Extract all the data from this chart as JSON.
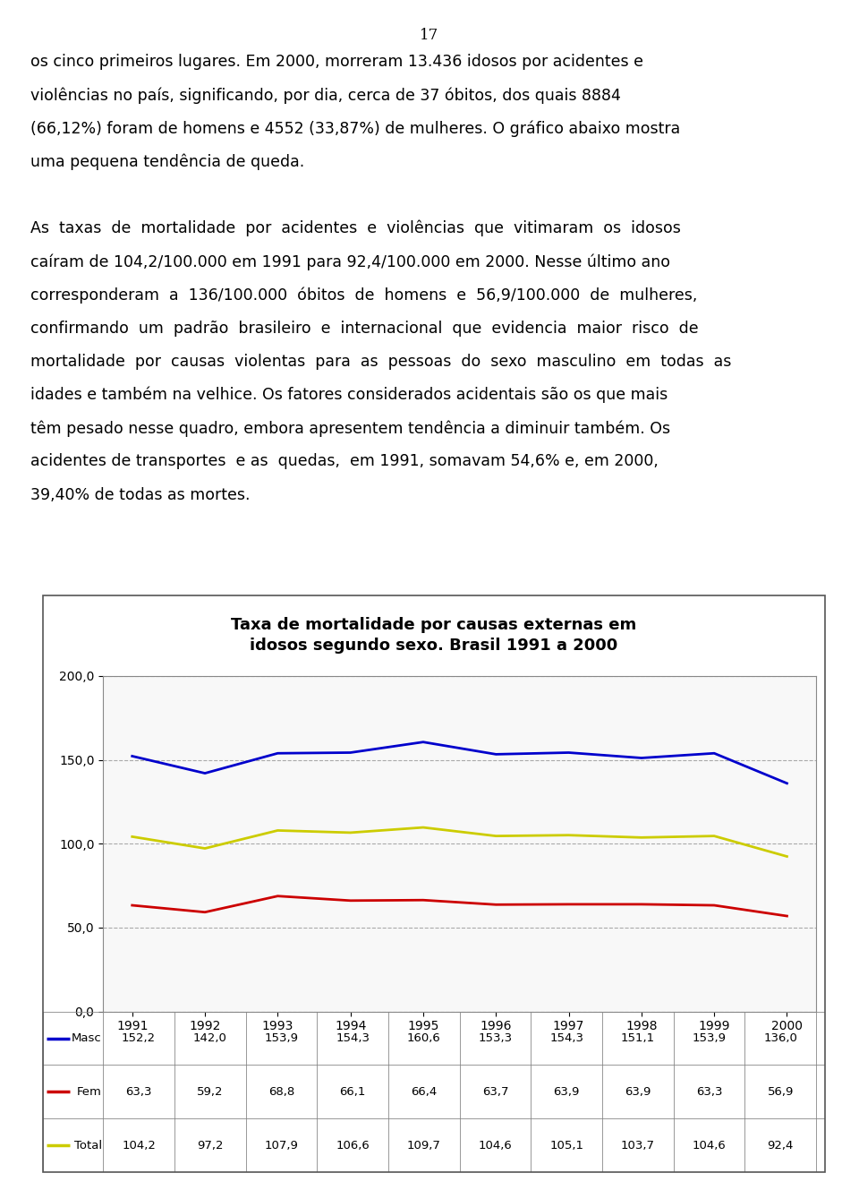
{
  "title_line1": "Taxa de mortalidade por causas externas em",
  "title_line2": "idosos segundo sexo. Brasil 1991 a 2000",
  "years": [
    1991,
    1992,
    1993,
    1994,
    1995,
    1996,
    1997,
    1998,
    1999,
    2000
  ],
  "masc": [
    152.2,
    142.0,
    153.9,
    154.3,
    160.6,
    153.3,
    154.3,
    151.1,
    153.9,
    136.0
  ],
  "fem": [
    63.3,
    59.2,
    68.8,
    66.1,
    66.4,
    63.7,
    63.9,
    63.9,
    63.3,
    56.9
  ],
  "total": [
    104.2,
    97.2,
    107.9,
    106.6,
    109.7,
    104.6,
    105.1,
    103.7,
    104.6,
    92.4
  ],
  "masc_color": "#0000CC",
  "fem_color": "#CC0000",
  "total_color": "#CCCC00",
  "ylim": [
    0,
    200
  ],
  "yticks": [
    0.0,
    50.0,
    100.0,
    150.0,
    200.0
  ],
  "ytick_labels": [
    "0,0",
    "50,0",
    "100,0",
    "150,0",
    "200,0"
  ],
  "bg_color": "#FFFFFF",
  "chart_bg_color": "#F8F8F8",
  "grid_color": "#AAAAAA",
  "border_color": "#888888",
  "table_border_color": "#888888",
  "masc_values_str": [
    "152,2",
    "142,0",
    "153,9",
    "154,3",
    "160,6",
    "153,3",
    "154,3",
    "151,1",
    "153,9",
    "136,0"
  ],
  "fem_values_str": [
    "63,3",
    "59,2",
    "68,8",
    "66,1",
    "66,4",
    "63,7",
    "63,9",
    "63,9",
    "63,3",
    "56,9"
  ],
  "total_values_str": [
    "104,2",
    "97,2",
    "107,9",
    "106,6",
    "109,7",
    "104,6",
    "105,1",
    "103,7",
    "104,6",
    "92,4"
  ],
  "row_labels": [
    "Masc",
    "Fem",
    "Total"
  ],
  "page_number": "17",
  "title_fontsize": 13,
  "axis_tick_fontsize": 10,
  "table_fontsize": 9.5,
  "text_fontsize": 12.5,
  "page_num_fontsize": 12,
  "text_lines": [
    "os cinco primeiros lugares. Em 2000, morreram 13.436 idosos por acidentes e",
    "violências no país, significando, por dia, cerca de 37 óbitos, dos quais 8884",
    "(66,12%) foram de homens e 4552 (33,87%) de mulheres. O gráfico abaixo mostra",
    "uma pequena tendência de queda.",
    "",
    "As  taxas  de  mortalidade  por  acidentes  e  violências  que  vitimaram  os  idosos",
    "caíram de 104,2/100.000 em 1991 para 92,4/100.000 em 2000. Nesse último ano",
    "corresponderam  a  136/100.000  óbitos  de  homens  e  56,9/100.000  de  mulheres,",
    "confirmando  um  padrão  brasileiro  e  internacional  que  evidencia  maior  risco  de",
    "mortalidade  por  causas  violentas  para  as  pessoas  do  sexo  masculino  em  todas  as",
    "idades e também na velhice. Os fatores considerados acidentais são os que mais",
    "têm pesado nesse quadro, embora apresentem tendência a diminuir também. Os",
    "acidentes de transportes  e as  quedas,  em 1991, somavam 54,6% e, em 2000,",
    "39,40% de todas as mortes."
  ]
}
